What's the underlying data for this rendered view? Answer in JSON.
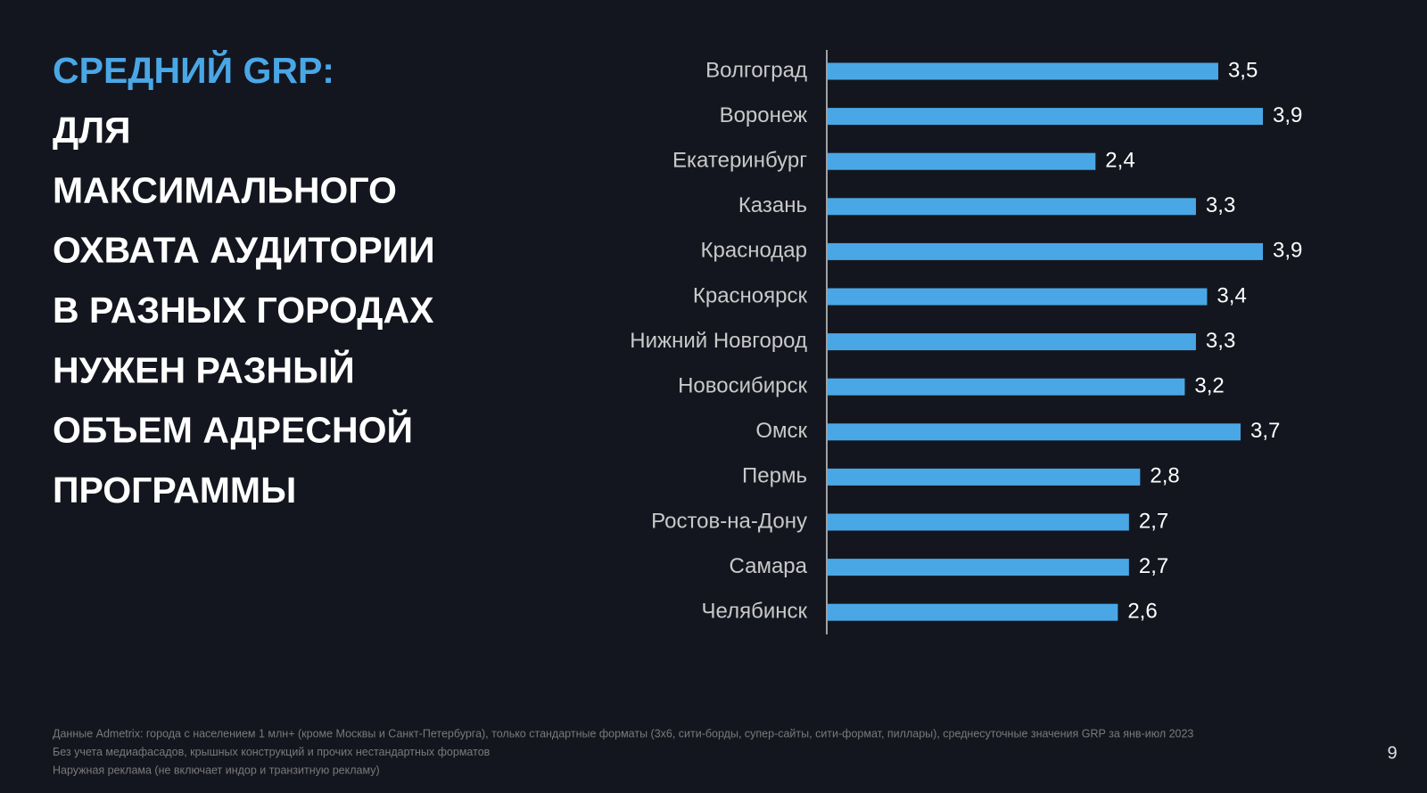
{
  "chart_data": {
    "type": "bar",
    "orientation": "horizontal",
    "title_accent": "СРЕДНИЙ GRP:",
    "title_lines": [
      "ДЛЯ",
      "МАКСИМАЛЬНОГО",
      "ОХВАТА АУДИТОРИИ",
      "В РАЗНЫХ ГОРОДАХ",
      "НУЖЕН РАЗНЫЙ",
      "ОБЪЕМ АДРЕСНОЙ",
      "ПРОГРАММЫ"
    ],
    "categories": [
      "Волгоград",
      "Воронеж",
      "Екатеринбург",
      "Казань",
      "Краснодар",
      "Красноярск",
      "Нижний Новгород",
      "Новосибирск",
      "Омск",
      "Пермь",
      "Ростов-на-Дону",
      "Самара",
      "Челябинск"
    ],
    "values": [
      3.5,
      3.9,
      2.4,
      3.3,
      3.9,
      3.4,
      3.3,
      3.2,
      3.7,
      2.8,
      2.7,
      2.7,
      2.6
    ],
    "value_labels": [
      "3,5",
      "3,9",
      "2,4",
      "3,3",
      "3,9",
      "3,4",
      "3,3",
      "3,2",
      "3,7",
      "2,8",
      "2,7",
      "2,7",
      "2,6"
    ],
    "color": "#4aa7e6",
    "notes": [
      "Данные Admetrix: города с населением 1 млн+ (кроме Москвы и Санкт-Петербурга), только стандартные форматы (3х6, сити-борды, супер-сайты, сити-формат, пиллары), среднесуточные значения GRP за янв-июл 2023",
      "Без учета медиафасадов, крышных конструкций и прочих нестандартных форматов",
      "Наружная реклама (не включает индор и транзитную рекламу)"
    ],
    "page_number": 9
  }
}
